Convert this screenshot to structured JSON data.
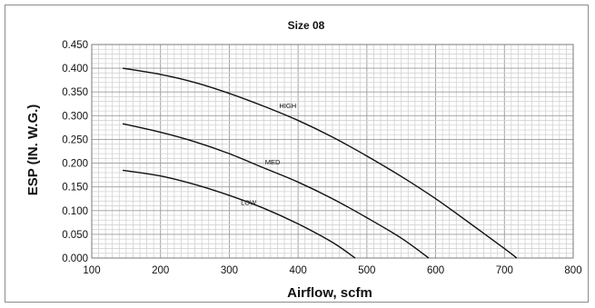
{
  "chart_data": {
    "type": "line",
    "title": "Size 08",
    "xlabel": "Airflow, scfm",
    "ylabel": "ESP (IN. W.G.)",
    "xlim": [
      100,
      800
    ],
    "ylim": [
      0,
      0.45
    ],
    "x_ticks": [
      "100",
      "200",
      "300",
      "400",
      "500",
      "600",
      "700",
      "800"
    ],
    "y_ticks": [
      "0.000",
      "0.050",
      "0.100",
      "0.150",
      "0.200",
      "0.250",
      "0.300",
      "0.350",
      "0.400",
      "0.450"
    ],
    "grid": true,
    "series": [
      {
        "name": "HIGH",
        "x": [
          145,
          200,
          250,
          300,
          350,
          400,
          450,
          500,
          550,
          600,
          650,
          700,
          718
        ],
        "y": [
          0.4,
          0.387,
          0.37,
          0.347,
          0.32,
          0.29,
          0.255,
          0.215,
          0.172,
          0.125,
          0.073,
          0.02,
          0.0
        ]
      },
      {
        "name": "MED",
        "x": [
          145,
          200,
          250,
          300,
          350,
          400,
          450,
          500,
          550,
          590
        ],
        "y": [
          0.283,
          0.265,
          0.245,
          0.22,
          0.19,
          0.16,
          0.125,
          0.085,
          0.042,
          0.0
        ]
      },
      {
        "name": "LOW",
        "x": [
          145,
          200,
          250,
          300,
          350,
          400,
          450,
          483
        ],
        "y": [
          0.185,
          0.173,
          0.155,
          0.132,
          0.105,
          0.072,
          0.033,
          0.0
        ]
      }
    ]
  }
}
